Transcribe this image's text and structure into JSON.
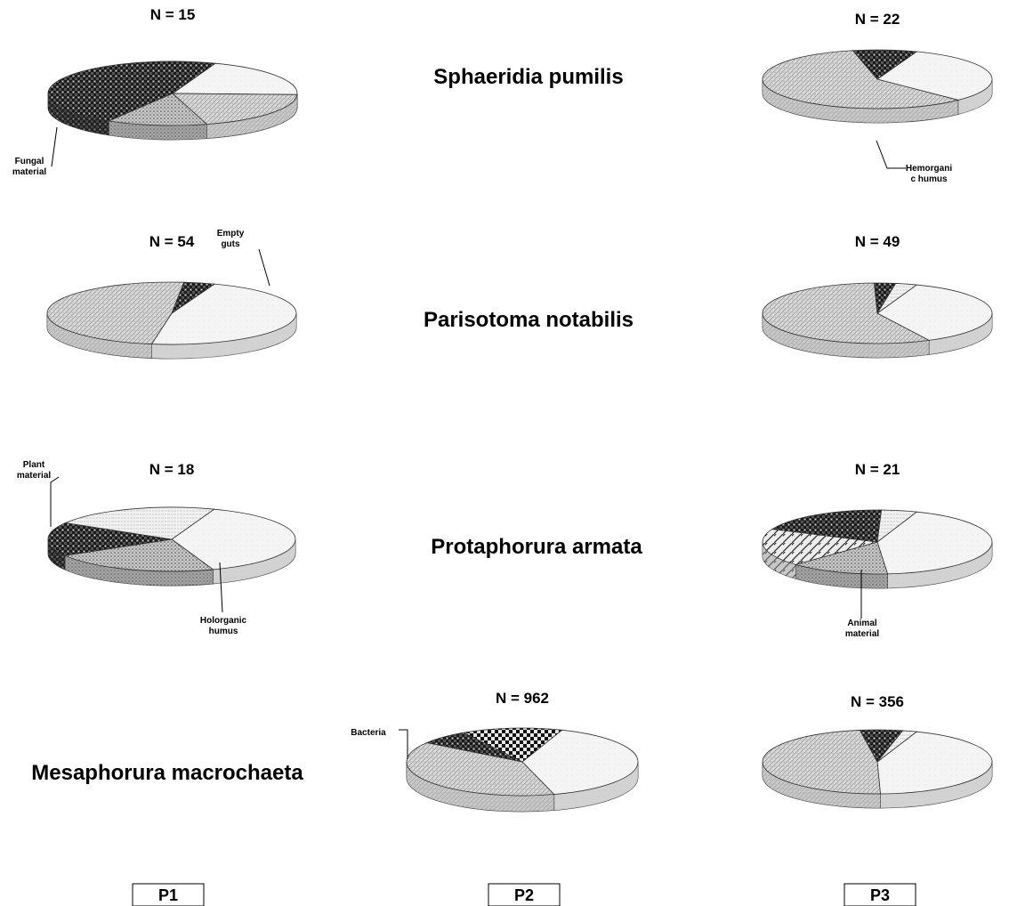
{
  "chart_data": {
    "type": "pie",
    "plots": [
      "P1",
      "P2",
      "P3"
    ],
    "categories": [
      "Fungal material",
      "Empty guts",
      "Hemorganic humus",
      "Holorganic humus",
      "Plant material",
      "Animal material",
      "Bacteria"
    ],
    "species": [
      "Sphaeridia pumilis",
      "Parisotoma notabilis",
      "Protaphorura armata",
      "Mesaphorura macrochaeta"
    ],
    "pies": [
      {
        "species_index": 0,
        "plot": "P1",
        "n_label": "N = 15",
        "slices": [
          {
            "category": "Empty guts",
            "value": 20
          },
          {
            "category": "Hemorganic humus",
            "value": 20
          },
          {
            "category": "Holorganic humus",
            "value": 13
          },
          {
            "category": "Fungal material",
            "value": 47
          }
        ],
        "callout": {
          "line1": "Fungal",
          "line2": "material"
        }
      },
      {
        "species_index": 0,
        "plot": "P3",
        "n_label": "N = 22",
        "slices": [
          {
            "category": "Empty guts",
            "value": 32
          },
          {
            "category": "Hemorganic humus",
            "value": 59
          },
          {
            "category": "Fungal material",
            "value": 9
          }
        ],
        "callout": {
          "line1": "Hemorgani",
          "line2": "c humus"
        }
      },
      {
        "species_index": 1,
        "plot": "P1",
        "n_label": "N = 54",
        "slices": [
          {
            "category": "Empty guts",
            "value": 47
          },
          {
            "category": "Hemorganic humus",
            "value": 49
          },
          {
            "category": "Fungal material",
            "value": 4
          }
        ],
        "callout": {
          "line1": "Empty",
          "line2": "guts"
        }
      },
      {
        "species_index": 1,
        "plot": "P3",
        "n_label": "N = 49",
        "slices": [
          {
            "category": "Empty guts",
            "value": 37
          },
          {
            "category": "Hemorganic humus",
            "value": 57
          },
          {
            "category": "Fungal material",
            "value": 3
          },
          {
            "category": "Plant material",
            "value": 3
          }
        ]
      },
      {
        "species_index": 2,
        "plot": "P1",
        "n_label": "N = 18",
        "slices": [
          {
            "category": "Empty guts",
            "value": 39
          },
          {
            "category": "Holorganic humus",
            "value": 22
          },
          {
            "category": "Fungal material",
            "value": 17
          },
          {
            "category": "Plant material",
            "value": 22
          }
        ],
        "callouts": [
          {
            "line1": "Plant",
            "line2": "material"
          },
          {
            "line1": "Holorganic",
            "line2": "humus"
          }
        ]
      },
      {
        "species_index": 2,
        "plot": "P3",
        "n_label": "N = 21",
        "slices": [
          {
            "category": "Empty guts",
            "value": 43
          },
          {
            "category": "Holorganic humus",
            "value": 14
          },
          {
            "category": "Animal material",
            "value": 19
          },
          {
            "category": "Fungal material",
            "value": 19
          },
          {
            "category": "Plant material",
            "value": 5
          }
        ],
        "callout": {
          "line1": "Animal",
          "line2": "material"
        }
      },
      {
        "species_index": 3,
        "plot": "P2",
        "n_label": "N = 962",
        "slices": [
          {
            "category": "Empty guts",
            "value": 40
          },
          {
            "category": "Hemorganic humus",
            "value": 39
          },
          {
            "category": "Fungal material",
            "value": 7
          },
          {
            "category": "Bacteria",
            "value": 14
          }
        ],
        "callout": {
          "line1": "Bacteria",
          "line2": ""
        }
      },
      {
        "species_index": 3,
        "plot": "P3",
        "n_label": "N = 356",
        "slices": [
          {
            "category": "Empty guts",
            "value": 44
          },
          {
            "category": "Hemorganic humus",
            "value": 48
          },
          {
            "category": "Fungal material",
            "value": 6
          },
          {
            "category": "Plant material",
            "value": 2
          }
        ]
      }
    ]
  }
}
